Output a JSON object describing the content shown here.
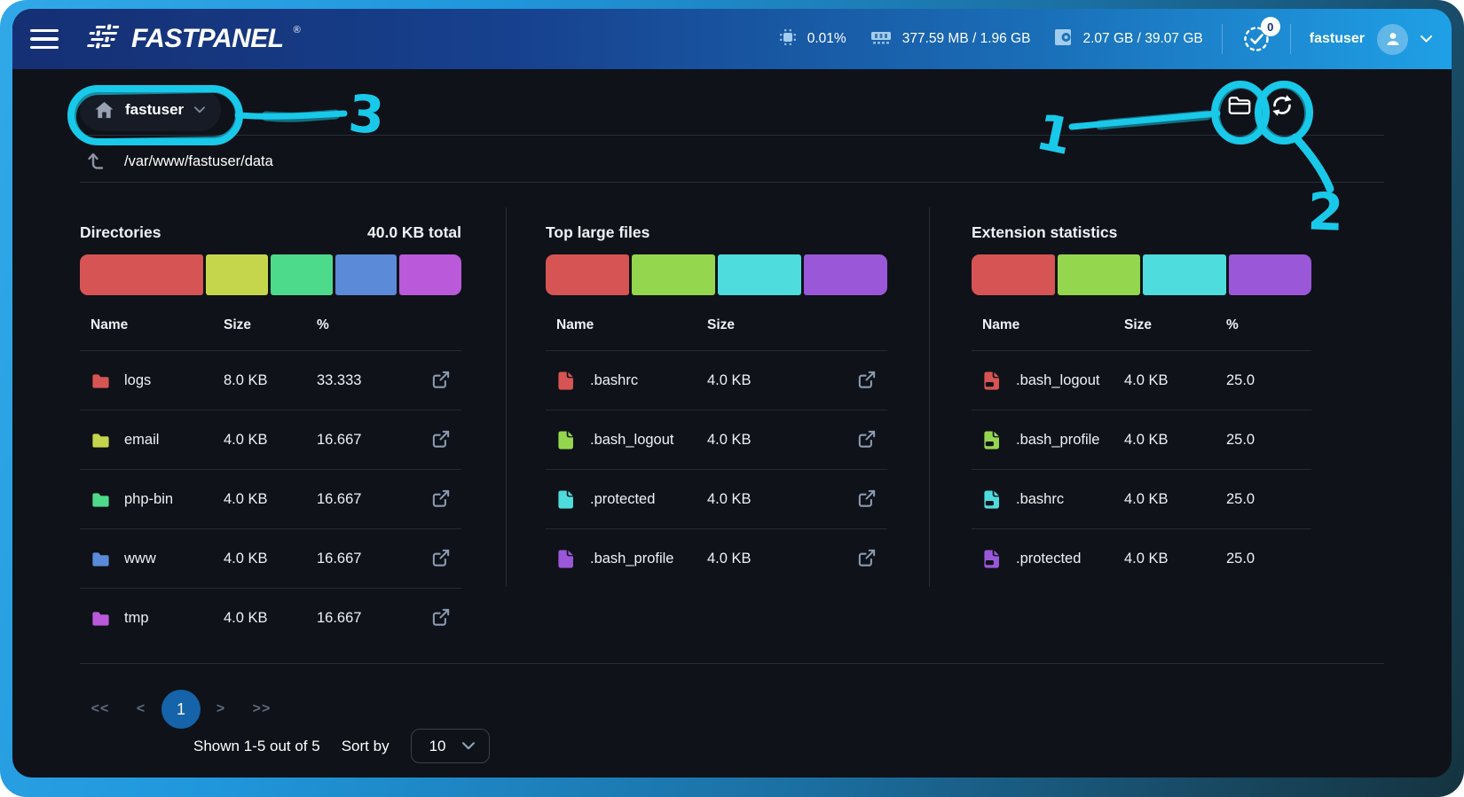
{
  "header": {
    "brand": "FASTPANEL",
    "registered_mark": "®",
    "stats": [
      {
        "icon": "cpu-icon",
        "value": "0.01%"
      },
      {
        "icon": "ram-icon",
        "value": "377.59 MB / 1.96 GB"
      },
      {
        "icon": "disk-icon",
        "value": "2.07 GB / 39.07 GB"
      }
    ],
    "tasks_count": "0",
    "username": "fastuser"
  },
  "toolbar": {
    "location_label": "fastuser",
    "path": "/var/www/fastuser/data"
  },
  "sections": [
    {
      "id": "directories",
      "title": "Directories",
      "total": "40.0 KB total",
      "columns": [
        "Name",
        "Size",
        "%"
      ],
      "bar": [
        {
          "color": "#d75454",
          "percent": 33.333
        },
        {
          "color": "#c5d64c",
          "percent": 16.667
        },
        {
          "color": "#4eda8b",
          "percent": 16.667
        },
        {
          "color": "#5a8ad8",
          "percent": 16.667
        },
        {
          "color": "#ba59da",
          "percent": 16.667
        }
      ],
      "rows": [
        {
          "icon": "folder-icon",
          "color": "#d75454",
          "name": "logs",
          "size": "8.0 KB",
          "percent": "33.333",
          "action": true
        },
        {
          "icon": "folder-icon",
          "color": "#c5d64c",
          "name": "email",
          "size": "4.0 KB",
          "percent": "16.667",
          "action": true
        },
        {
          "icon": "folder-icon",
          "color": "#4eda8b",
          "name": "php-bin",
          "size": "4.0 KB",
          "percent": "16.667",
          "action": true
        },
        {
          "icon": "folder-icon",
          "color": "#5a8ad8",
          "name": "www",
          "size": "4.0 KB",
          "percent": "16.667",
          "action": true
        },
        {
          "icon": "folder-icon",
          "color": "#ba59da",
          "name": "tmp",
          "size": "4.0 KB",
          "percent": "16.667",
          "action": true
        }
      ]
    },
    {
      "id": "top-large-files",
      "title": "Top large files",
      "total": null,
      "columns": [
        "Name",
        "Size"
      ],
      "bar": [
        {
          "color": "#d75454",
          "percent": 25
        },
        {
          "color": "#95d64f",
          "percent": 25
        },
        {
          "color": "#4edcdc",
          "percent": 25
        },
        {
          "color": "#9a58d9",
          "percent": 25
        }
      ],
      "rows": [
        {
          "icon": "file-icon",
          "color": "#d75454",
          "name": ".bashrc",
          "size": "4.0 KB",
          "percent": null,
          "action": true
        },
        {
          "icon": "file-icon",
          "color": "#95d64f",
          "name": ".bash_logout",
          "size": "4.0 KB",
          "percent": null,
          "action": true
        },
        {
          "icon": "file-icon",
          "color": "#4edcdc",
          "name": ".protected",
          "size": "4.0 KB",
          "percent": null,
          "action": true
        },
        {
          "icon": "file-icon",
          "color": "#9a58d9",
          "name": ".bash_profile",
          "size": "4.0 KB",
          "percent": null,
          "action": true
        }
      ]
    },
    {
      "id": "extension-statistics",
      "title": "Extension statistics",
      "total": null,
      "columns": [
        "Name",
        "Size",
        "%"
      ],
      "bar": [
        {
          "color": "#d75454",
          "percent": 25
        },
        {
          "color": "#95d64f",
          "percent": 25
        },
        {
          "color": "#4edcdc",
          "percent": 25
        },
        {
          "color": "#9a58d9",
          "percent": 25
        }
      ],
      "rows": [
        {
          "icon": "file-extension-icon",
          "color": "#d75454",
          "name": ".bash_logout",
          "size": "4.0 KB",
          "percent": "25.0",
          "action": false
        },
        {
          "icon": "file-extension-icon",
          "color": "#95d64f",
          "name": ".bash_profile",
          "size": "4.0 KB",
          "percent": "25.0",
          "action": false
        },
        {
          "icon": "file-extension-icon",
          "color": "#4edcdc",
          "name": ".bashrc",
          "size": "4.0 KB",
          "percent": "25.0",
          "action": false
        },
        {
          "icon": "file-extension-icon",
          "color": "#9a58d9",
          "name": ".protected",
          "size": "4.0 KB",
          "percent": "25.0",
          "action": false
        }
      ]
    }
  ],
  "pagination": {
    "first": "<<",
    "prev": "<",
    "current_page": "1",
    "next": ">",
    "last": ">>",
    "summary": "Shown 1-5 out of 5",
    "sort_label": "Sort by",
    "page_size": "10"
  },
  "annotations": {
    "labels": [
      "1",
      "2",
      "3"
    ],
    "color": "#19c9e9"
  },
  "colors": {
    "pagination_active": "#1563a8",
    "content_background": "#0f1218",
    "header_gradient_start": "#152f74",
    "header_gradient_end": "#1fa0e6"
  }
}
